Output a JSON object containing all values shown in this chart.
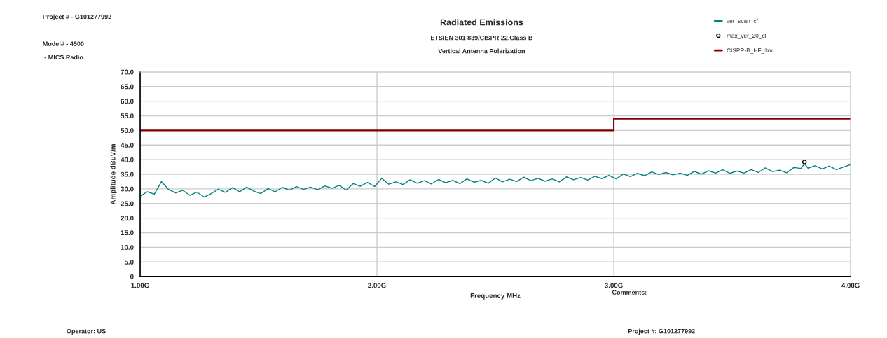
{
  "chart_data": {
    "type": "line",
    "title": "Radiated Emissions",
    "subtitle": "ETSIEN 301 839/CISPR 22,Class B\nVertical Antenna Polarization",
    "xlabel": "Frequency MHz",
    "ylabel": "Amplitude dBuV/m",
    "xlim": [
      1,
      4
    ],
    "xticks": [
      {
        "value": 1,
        "label": "1.00G"
      },
      {
        "value": 2,
        "label": "2.00G"
      },
      {
        "value": 3,
        "label": "3.00G"
      },
      {
        "value": 4,
        "label": "4.00G"
      }
    ],
    "ylim": [
      0,
      70
    ],
    "yticks": [
      0,
      {
        "value": 5,
        "label": "5.0"
      },
      {
        "value": 10,
        "label": "10.0"
      },
      {
        "value": 15,
        "label": "15.0"
      },
      {
        "value": 20,
        "label": "20.0"
      },
      {
        "value": 25,
        "label": "25.0"
      },
      {
        "value": 30,
        "label": "30.0"
      },
      {
        "value": 35,
        "label": "35.0"
      },
      {
        "value": 40,
        "label": "40.0"
      },
      {
        "value": 45,
        "label": "45.0"
      },
      {
        "value": 50,
        "label": "50.0"
      },
      {
        "value": 55,
        "label": "55.0"
      },
      {
        "value": 60,
        "label": "60.0"
      },
      {
        "value": 65,
        "label": "65.0"
      },
      {
        "value": 70,
        "label": "70.0"
      }
    ],
    "grid": true,
    "legend": "top right",
    "series": [
      {
        "name": "ver_scan_cf",
        "color": "#008080",
        "x": [
          1.0,
          1.03,
          1.06,
          1.09,
          1.12,
          1.15,
          1.18,
          1.21,
          1.24,
          1.27,
          1.3,
          1.33,
          1.36,
          1.39,
          1.42,
          1.45,
          1.48,
          1.51,
          1.54,
          1.57,
          1.6,
          1.63,
          1.66,
          1.69,
          1.72,
          1.75,
          1.78,
          1.81,
          1.84,
          1.87,
          1.9,
          1.93,
          1.96,
          1.99,
          2.02,
          2.05,
          2.08,
          2.11,
          2.14,
          2.17,
          2.2,
          2.23,
          2.26,
          2.29,
          2.32,
          2.35,
          2.38,
          2.41,
          2.44,
          2.47,
          2.5,
          2.53,
          2.56,
          2.59,
          2.62,
          2.65,
          2.68,
          2.71,
          2.74,
          2.77,
          2.8,
          2.83,
          2.86,
          2.89,
          2.92,
          2.95,
          2.98,
          3.01,
          3.04,
          3.07,
          3.1,
          3.13,
          3.16,
          3.19,
          3.22,
          3.25,
          3.28,
          3.31,
          3.34,
          3.37,
          3.4,
          3.43,
          3.46,
          3.49,
          3.52,
          3.55,
          3.58,
          3.61,
          3.64,
          3.67,
          3.7,
          3.73,
          3.76,
          3.79,
          3.805,
          3.82,
          3.85,
          3.88,
          3.91,
          3.94,
          3.97,
          4.0
        ],
        "values": [
          27.5,
          29.0,
          28.2,
          32.5,
          29.8,
          28.6,
          29.5,
          27.8,
          28.9,
          27.2,
          28.4,
          29.9,
          28.8,
          30.4,
          29.0,
          30.6,
          29.2,
          28.4,
          30.1,
          29.0,
          30.5,
          29.6,
          30.8,
          29.8,
          30.6,
          29.7,
          31.0,
          30.2,
          31.2,
          29.6,
          31.8,
          30.9,
          32.2,
          30.8,
          33.6,
          31.6,
          32.4,
          31.5,
          33.1,
          31.9,
          32.8,
          31.7,
          33.2,
          32.1,
          32.9,
          31.8,
          33.4,
          32.3,
          32.9,
          31.9,
          33.7,
          32.4,
          33.3,
          32.5,
          34.0,
          32.8,
          33.6,
          32.6,
          33.4,
          32.4,
          34.1,
          33.1,
          33.9,
          33.0,
          34.3,
          33.5,
          34.6,
          33.4,
          35.1,
          34.2,
          35.3,
          34.5,
          35.8,
          34.9,
          35.6,
          34.8,
          35.4,
          34.6,
          36.0,
          35.0,
          36.2,
          35.4,
          36.5,
          35.3,
          36.1,
          35.4,
          36.6,
          35.6,
          37.2,
          35.9,
          36.4,
          35.5,
          37.3,
          37.0,
          38.6,
          37.1,
          37.9,
          36.8,
          37.8,
          36.6,
          37.5,
          38.3
        ]
      },
      {
        "name": "max_ver_20_cf",
        "type": "scatter",
        "color": "#000000",
        "marker": "circle",
        "x": [
          3.805
        ],
        "values": [
          39.2
        ]
      },
      {
        "name": "CISPR-B_HF_3m",
        "type": "step",
        "color": "#800000",
        "x": [
          1,
          3,
          4
        ],
        "values": [
          50,
          54,
          54
        ]
      }
    ],
    "annotations": [
      "Project # - G101277992",
      "Model# - 4500",
      " - MICS Radio",
      "Comments:",
      "Operator: US",
      "Project #: G101277992"
    ]
  }
}
